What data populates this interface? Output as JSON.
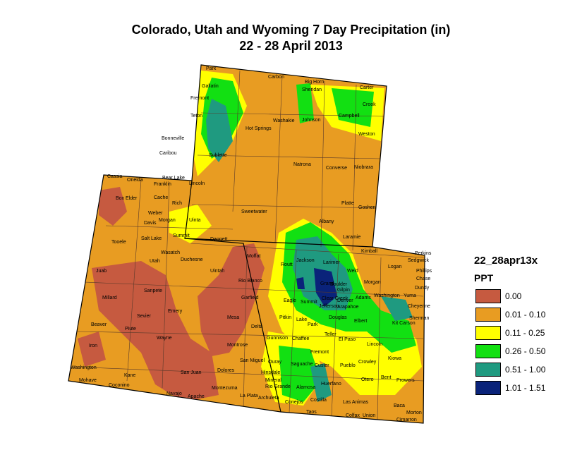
{
  "title": {
    "line1": "Colorado, Utah and Wyoming 7 Day Precipitation (in)",
    "line2": "22 - 28 April 2013"
  },
  "legend": {
    "layer": "22_28apr13x",
    "field": "PPT",
    "items": [
      {
        "label": "0.00",
        "color": "#c65a40"
      },
      {
        "label": "0.01 - 0.10",
        "color": "#e89c22"
      },
      {
        "label": "0.11 - 0.25",
        "color": "#ffff00"
      },
      {
        "label": "0.26 - 0.50",
        "color": "#12e012"
      },
      {
        "label": "0.51 - 1.00",
        "color": "#1f9a80"
      },
      {
        "label": "1.01 - 1.51",
        "color": "#0a237a"
      }
    ]
  },
  "map": {
    "states": [
      "Wyoming",
      "Utah",
      "Colorado"
    ],
    "counties": [
      "Park",
      "Gallatin",
      "Carbon",
      "Big Horn",
      "Sheridan",
      "Carter",
      "Fremont",
      "Teton",
      "Crook",
      "Washakie",
      "Johnson",
      "Hot Springs",
      "Campbell",
      "Weston",
      "Bonneville",
      "Caribou",
      "Sublette",
      "Natrona",
      "Converse",
      "Niobrara",
      "Cassia",
      "Oneida",
      "Bear Lake",
      "Franklin",
      "Lincoln",
      "Box Elder",
      "Cache",
      "Rich",
      "Sweetwater",
      "Platte",
      "Goshen",
      "Weber",
      "Davis",
      "Morgan",
      "Uinta",
      "Albany",
      "Laramie",
      "Tooele",
      "Salt Lake",
      "Summit",
      "Daggett",
      "Kimball",
      "Perkins",
      "Wasatch",
      "Duchesne",
      "Moffat",
      "Routt",
      "Jackson",
      "Larimer",
      "Logan",
      "Sedgwick",
      "Phillips",
      "Utah",
      "Juab",
      "Uintah",
      "Rio Blanco",
      "Grand",
      "Boulder",
      "Weld",
      "Morgan",
      "Chase",
      "Dundy",
      "Millard",
      "Sanpete",
      "Garfield",
      "Eagle",
      "Summit",
      "Clear Creek",
      "Gilpin",
      "Adams",
      "Washington",
      "Yuma",
      "Cheyenne",
      "Sevier",
      "Emery",
      "Pitkin",
      "Lake",
      "Jefferson",
      "Arapahoe",
      "Denver",
      "Douglas",
      "Elbert",
      "Kit Carson",
      "Sherman",
      "Beaver",
      "Piute",
      "Mesa",
      "Delta",
      "Park",
      "Teller",
      "Wayne",
      "Gunnison",
      "Chaffee",
      "El Paso",
      "Lincoln",
      "Iron",
      "Montrose",
      "Fremont",
      "Crowley",
      "Kiowa",
      "Washington",
      "Kane",
      "San Miguel",
      "Ouray",
      "Saguache",
      "Custer",
      "Pueblo",
      "Otero",
      "Bent",
      "Prowers",
      "Mohave",
      "Coconino",
      "San Juan",
      "Dolores",
      "Hinsdale",
      "Mineral",
      "Rio Grande",
      "Alamosa",
      "Huerfano",
      "Montezuma",
      "La Plata",
      "Archuleta",
      "Conejos",
      "Costilla",
      "Las Animas",
      "Baca",
      "Morton",
      "Navajo",
      "Apache",
      "Taos",
      "Colfax",
      "Union",
      "Cimarron"
    ]
  }
}
